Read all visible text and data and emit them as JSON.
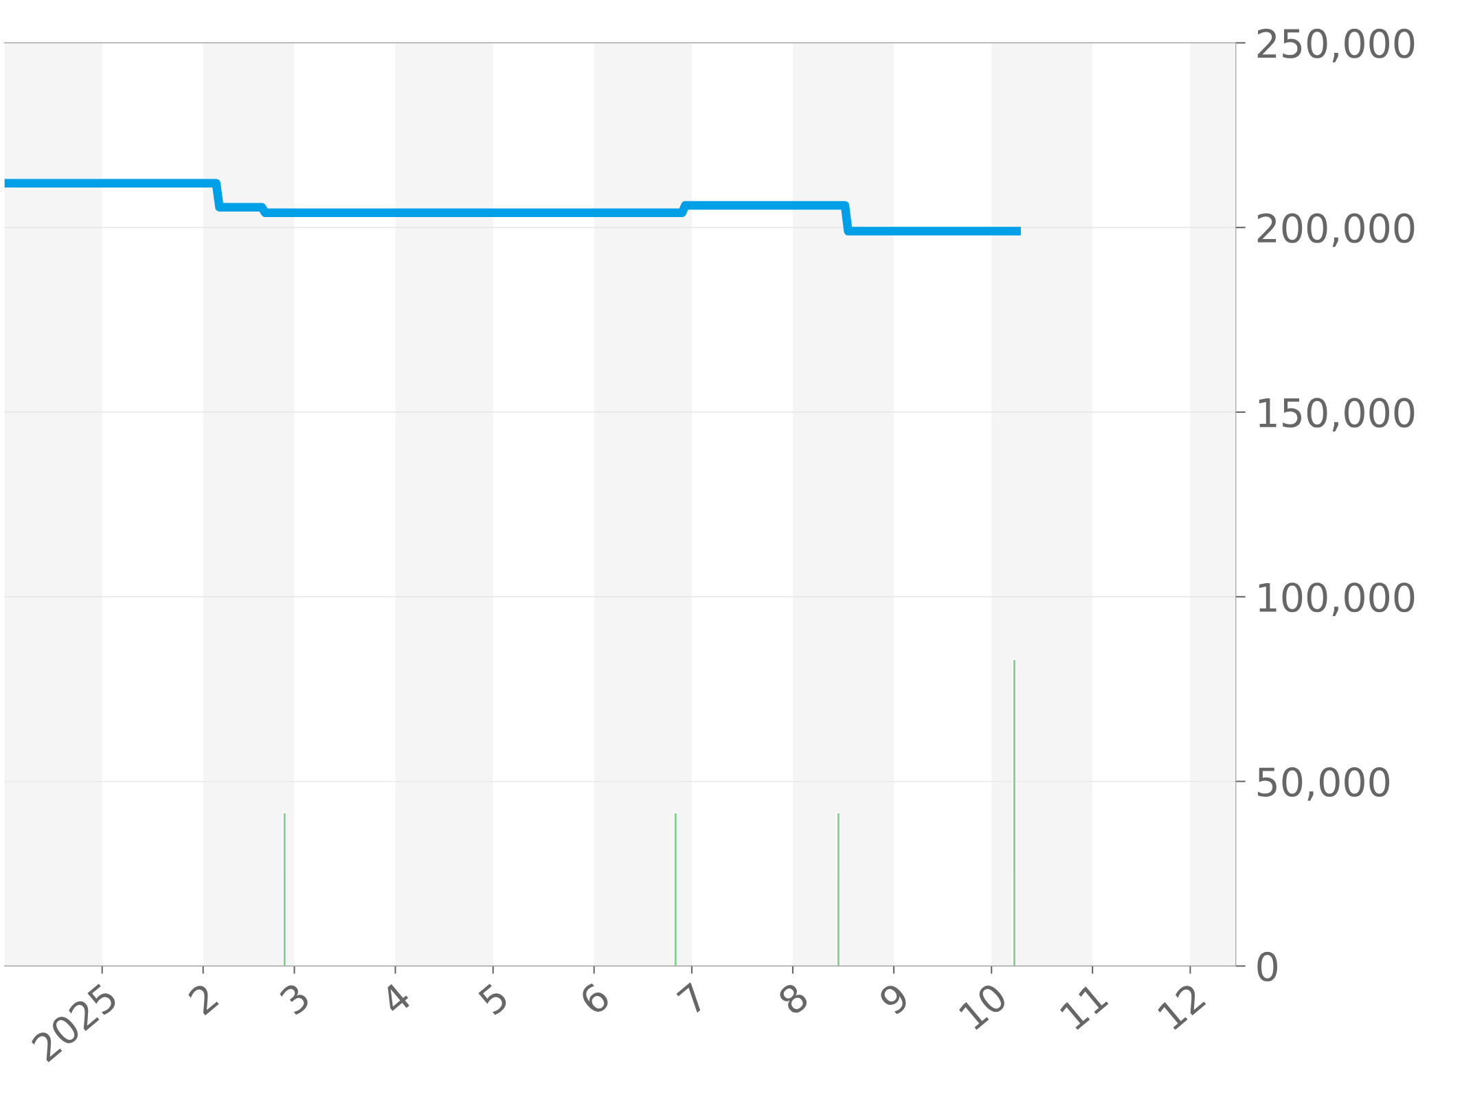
{
  "chart_data": {
    "type": "line",
    "x": [
      "2024-12-02",
      "2025-02-05",
      "2025-02-06",
      "2025-02-19",
      "2025-02-20",
      "2025-06-28",
      "2025-06-29",
      "2025-08-17",
      "2025-08-18",
      "2025-10-10"
    ],
    "series": [
      {
        "color": "#00a0e9",
        "values": [
          212000,
          212000,
          205500,
          205500,
          204000,
          204000,
          206000,
          206000,
          199000,
          199000
        ]
      },
      {
        "type": "bar",
        "color": "#7fd18a",
        "x": [
          "2025-02-26",
          "2025-06-26",
          "2025-08-15",
          "2025-10-08"
        ],
        "values": [
          41500,
          41500,
          41500,
          83000
        ]
      }
    ],
    "xlim": [
      "2024-12-02",
      "2025-12-15"
    ],
    "xticks": [
      {
        "value": "2025-01-01",
        "label": "2025"
      },
      {
        "value": "2025-02-01",
        "label": "2"
      },
      {
        "value": "2025-03-01",
        "label": "3"
      },
      {
        "value": "2025-04-01",
        "label": "4"
      },
      {
        "value": "2025-05-01",
        "label": "5"
      },
      {
        "value": "2025-06-01",
        "label": "6"
      },
      {
        "value": "2025-07-01",
        "label": "7"
      },
      {
        "value": "2025-08-01",
        "label": "8"
      },
      {
        "value": "2025-09-01",
        "label": "9"
      },
      {
        "value": "2025-10-01",
        "label": "10"
      },
      {
        "value": "2025-11-01",
        "label": "11"
      },
      {
        "value": "2025-12-01",
        "label": "12"
      }
    ],
    "ylim": [
      0,
      250000
    ],
    "yticks": [
      {
        "value": 0,
        "label": "0"
      },
      {
        "value": 50000,
        "label": "50,000"
      },
      {
        "value": 100000,
        "label": "100,000"
      },
      {
        "value": 150000,
        "label": "150,000"
      },
      {
        "value": 200000,
        "label": "200,000"
      },
      {
        "value": 250000,
        "label": "250,000"
      }
    ],
    "bands": [
      {
        "axis": "x",
        "from": "2024-12-02",
        "to": "2025-01-01",
        "color": "#f5f5f5"
      },
      {
        "axis": "x",
        "from": "2025-02-01",
        "to": "2025-03-01",
        "color": "#f5f5f5"
      },
      {
        "axis": "x",
        "from": "2025-04-01",
        "to": "2025-05-01",
        "color": "#f5f5f5"
      },
      {
        "axis": "x",
        "from": "2025-06-01",
        "to": "2025-07-01",
        "color": "#f5f5f5"
      },
      {
        "axis": "x",
        "from": "2025-08-01",
        "to": "2025-09-01",
        "color": "#f5f5f5"
      },
      {
        "axis": "x",
        "from": "2025-10-01",
        "to": "2025-11-01",
        "color": "#f5f5f5"
      },
      {
        "axis": "x",
        "from": "2025-12-01",
        "to": "2025-12-15",
        "color": "#f5f5f5"
      }
    ],
    "grid": "y",
    "legend": false,
    "marker": "none",
    "line_style": "solid"
  }
}
